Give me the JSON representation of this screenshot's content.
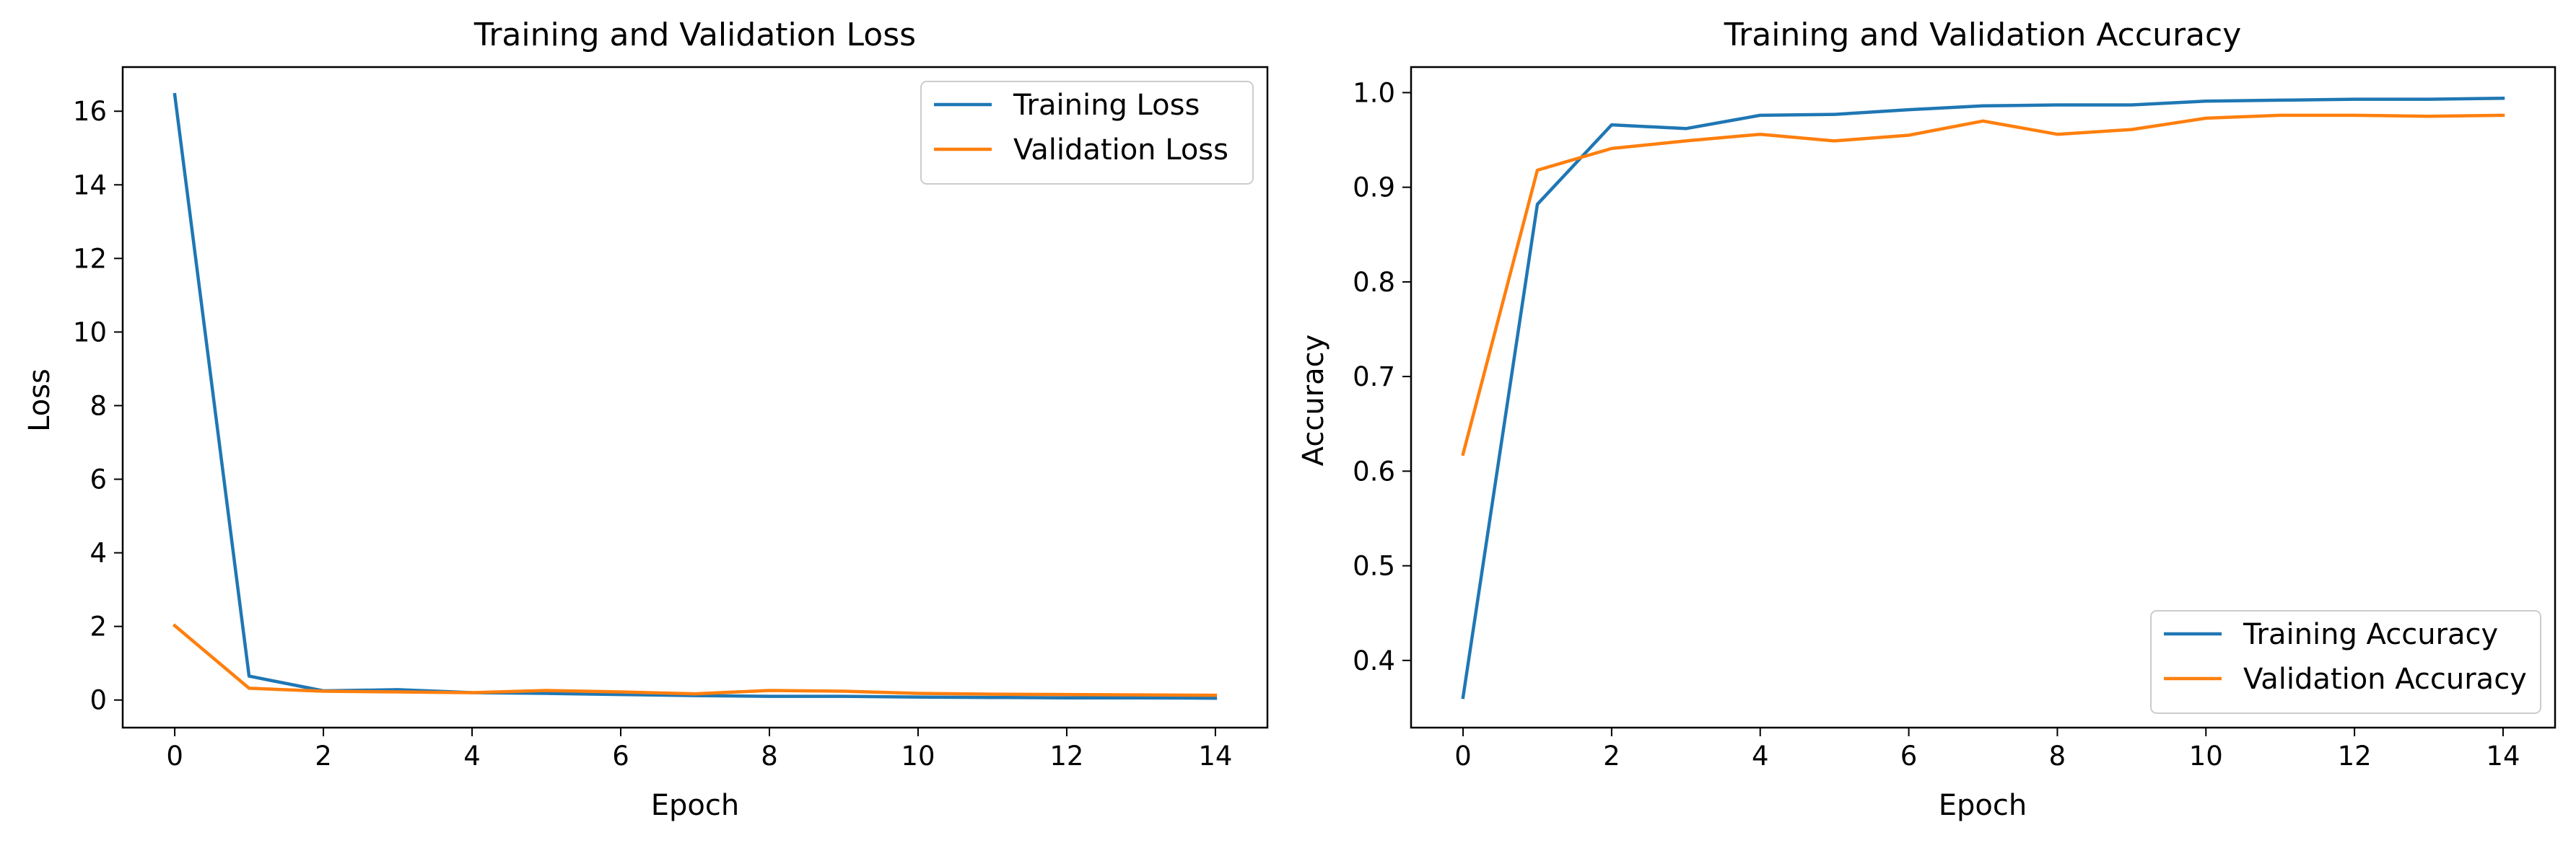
{
  "chart_data": [
    {
      "type": "line",
      "title": "Training and Validation Loss",
      "xlabel": "Epoch",
      "ylabel": "Loss",
      "xlim": [
        -0.7,
        14.7
      ],
      "ylim": [
        -0.75,
        17.2
      ],
      "xticks": [
        0,
        2,
        4,
        6,
        8,
        10,
        12,
        14
      ],
      "yticks": [
        0,
        2,
        4,
        6,
        8,
        10,
        12,
        14,
        16
      ],
      "legend_position": "top-right",
      "x": [
        0,
        1,
        2,
        3,
        4,
        5,
        6,
        7,
        8,
        9,
        10,
        11,
        12,
        13,
        14
      ],
      "series": [
        {
          "name": "Training Loss",
          "color": "#1f77b4",
          "values": [
            16.45,
            0.65,
            0.25,
            0.28,
            0.2,
            0.18,
            0.15,
            0.12,
            0.1,
            0.1,
            0.08,
            0.07,
            0.06,
            0.06,
            0.05
          ]
        },
        {
          "name": "Validation Loss",
          "color": "#ff7f0e",
          "values": [
            2.02,
            0.32,
            0.24,
            0.22,
            0.2,
            0.26,
            0.22,
            0.17,
            0.26,
            0.24,
            0.18,
            0.16,
            0.15,
            0.14,
            0.13
          ]
        }
      ]
    },
    {
      "type": "line",
      "title": "Training and Validation Accuracy",
      "xlabel": "Epoch",
      "ylabel": "Accuracy",
      "xlim": [
        -0.7,
        14.7
      ],
      "ylim": [
        0.329,
        1.027
      ],
      "xticks": [
        0,
        2,
        4,
        6,
        8,
        10,
        12,
        14
      ],
      "yticks": [
        0.4,
        0.5,
        0.6,
        0.7,
        0.8,
        0.9,
        1.0
      ],
      "ytick_labels": [
        "0.4",
        "0.5",
        "0.6",
        "0.7",
        "0.8",
        "0.9",
        "1.0"
      ],
      "legend_position": "bottom-right",
      "x": [
        0,
        1,
        2,
        3,
        4,
        5,
        6,
        7,
        8,
        9,
        10,
        11,
        12,
        13,
        14
      ],
      "series": [
        {
          "name": "Training Accuracy",
          "color": "#1f77b4",
          "values": [
            0.361,
            0.882,
            0.966,
            0.962,
            0.976,
            0.977,
            0.982,
            0.986,
            0.987,
            0.987,
            0.991,
            0.992,
            0.993,
            0.993,
            0.994
          ]
        },
        {
          "name": "Validation Accuracy",
          "color": "#ff7f0e",
          "values": [
            0.618,
            0.918,
            0.941,
            0.949,
            0.956,
            0.949,
            0.955,
            0.97,
            0.956,
            0.961,
            0.973,
            0.976,
            0.976,
            0.975,
            0.976
          ]
        }
      ]
    }
  ]
}
